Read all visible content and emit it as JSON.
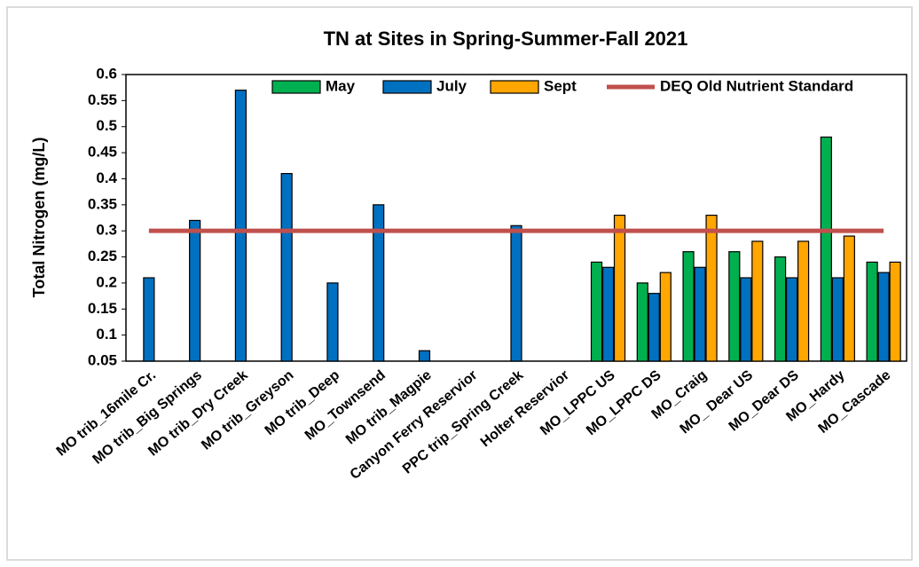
{
  "chart_data": {
    "type": "bar",
    "title": "TN at Sites in Spring-Summer-Fall 2021",
    "y_label": "Total Nitrogen (mg/L)",
    "categories": [
      "MO trib_16mile Cr.",
      "MO trib_Big Springs",
      "MO trib_Dry Creek",
      "MO trib_Greyson",
      "MO trib_Deep",
      "MO_Townsend",
      "MO trib_Magpie",
      "Canyon Ferry  Reservior",
      "PPC trip_Spring Creek",
      "Holter Reservior",
      "MO_LPPC US",
      "MO_LPPC DS",
      "MO_Craig",
      "MO_ Dear US",
      "MO_Dear DS",
      "MO_Hardy",
      "MO_Cascade"
    ],
    "series": [
      {
        "name": "May",
        "color": "#00b050",
        "values": [
          null,
          null,
          null,
          null,
          null,
          null,
          null,
          null,
          null,
          null,
          0.24,
          0.2,
          0.26,
          0.26,
          0.25,
          0.48,
          0.24
        ]
      },
      {
        "name": "July",
        "color": "#0070c0",
        "values": [
          0.21,
          0.32,
          0.57,
          0.41,
          0.2,
          0.35,
          0.07,
          null,
          0.31,
          null,
          0.23,
          0.18,
          0.23,
          0.21,
          0.21,
          0.21,
          0.22
        ]
      },
      {
        "name": "Sept",
        "color": "#ffa600",
        "values": [
          null,
          null,
          null,
          null,
          null,
          null,
          null,
          null,
          null,
          null,
          0.33,
          0.22,
          0.33,
          0.28,
          0.28,
          0.29,
          0.24
        ]
      },
      {
        "name": "DEQ Old Nutrient Standard",
        "type": "line",
        "color": "#c0504d",
        "values": [
          0.3,
          0.3,
          0.3,
          0.3,
          0.3,
          0.3,
          0.3,
          0.3,
          0.3,
          0.3,
          0.3,
          0.3,
          0.3,
          0.3,
          0.3,
          0.3,
          0.3
        ]
      }
    ],
    "ylim": [
      0.05,
      0.6
    ],
    "yticks": [
      0.05,
      0.1,
      0.15,
      0.2,
      0.25,
      0.3,
      0.35,
      0.4,
      0.45,
      0.5,
      0.55,
      0.6
    ],
    "grid": false,
    "legend": "top"
  }
}
